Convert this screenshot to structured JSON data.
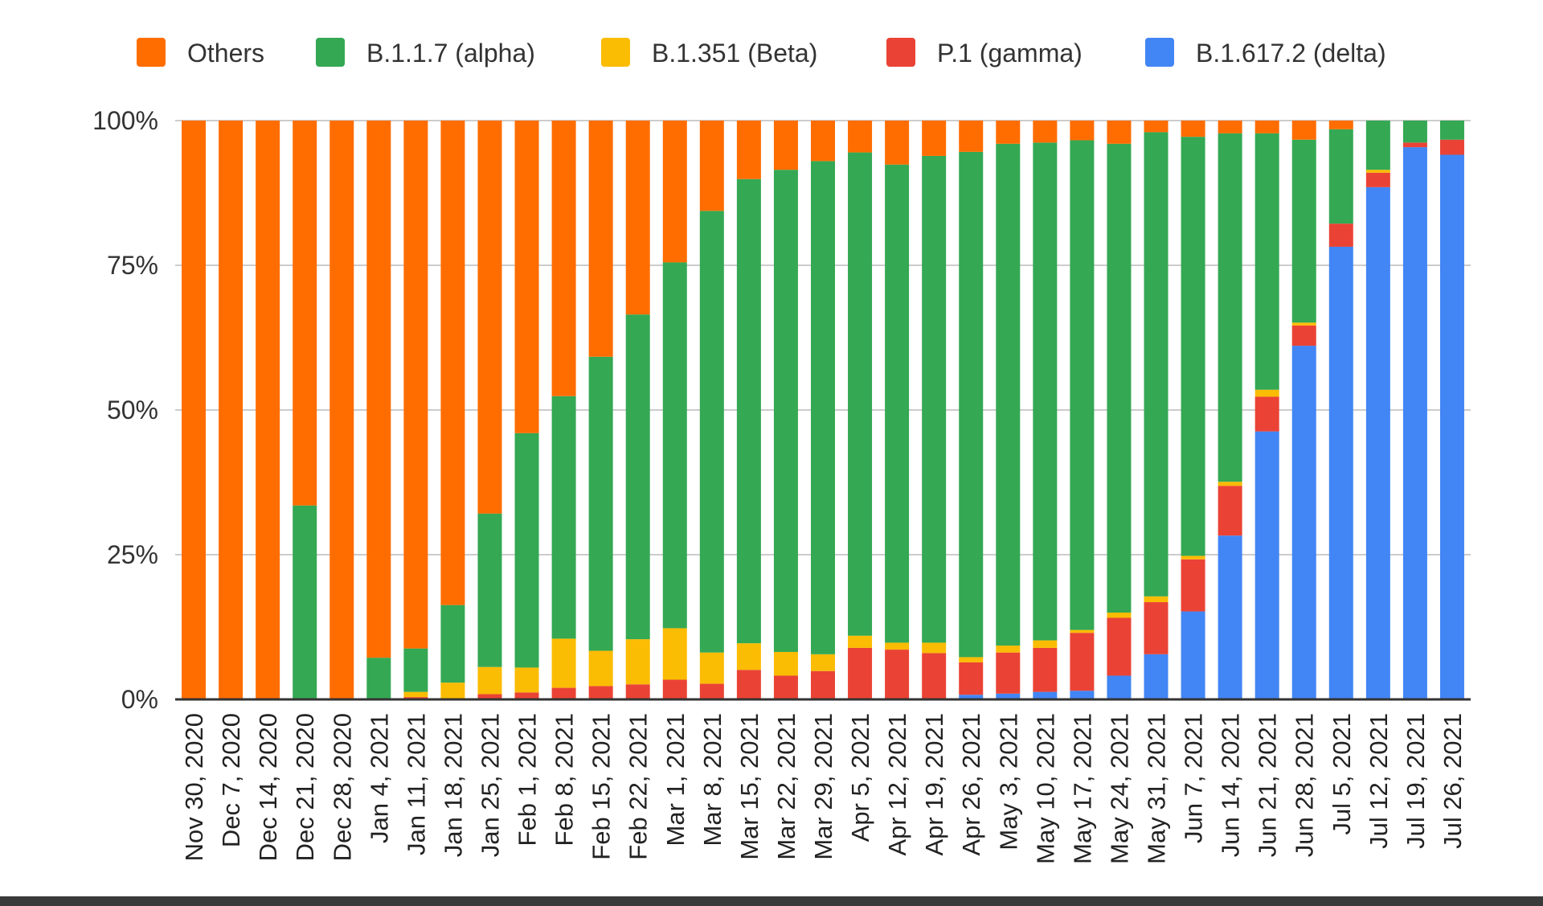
{
  "chart_data": {
    "type": "bar",
    "stacked": true,
    "normalized": true,
    "title": "",
    "xlabel": "",
    "ylabel": "",
    "ylim": [
      0,
      100
    ],
    "yticks": [
      "0%",
      "25%",
      "50%",
      "75%",
      "100%"
    ],
    "grid": true,
    "legend_position": "top",
    "categories": [
      "Nov 30, 2020",
      "Dec 7, 2020",
      "Dec 14, 2020",
      "Dec 21, 2020",
      "Dec 28, 2020",
      "Jan 4, 2021",
      "Jan 11, 2021",
      "Jan 18, 2021",
      "Jan 25, 2021",
      "Feb 1, 2021",
      "Feb 8, 2021",
      "Feb 15, 2021",
      "Feb 22, 2021",
      "Mar 1, 2021",
      "Mar 8, 2021",
      "Mar 15, 2021",
      "Mar 22, 2021",
      "Mar 29, 2021",
      "Apr 5, 2021",
      "Apr 12, 2021",
      "Apr 19, 2021",
      "Apr 26, 2021",
      "May 3, 2021",
      "May 10, 2021",
      "May 17, 2021",
      "May 24, 2021",
      "May 31, 2021",
      "Jun 7, 2021",
      "Jun 14, 2021",
      "Jun 21, 2021",
      "Jun 28, 2021",
      "Jul 5, 2021",
      "Jul 12, 2021",
      "Jul 19, 2021",
      "Jul 26, 2021"
    ],
    "stack_order": [
      "B.1.617.2 (delta)",
      "P.1 (gamma)",
      "B.1.351 (Beta)",
      "B.1.1.7 (alpha)",
      "Others"
    ],
    "series": [
      {
        "name": "Others",
        "color": "#FF6D01",
        "values": [
          100,
          100,
          100,
          66.5,
          100,
          92.8,
          91.2,
          83.7,
          67.9,
          54,
          47.6,
          40.8,
          33.5,
          24.5,
          15.6,
          10.1,
          8.5,
          7,
          5.5,
          7.6,
          6.1,
          5.4,
          4,
          3.8,
          3.4,
          4,
          2,
          2.8,
          2.2,
          2.2,
          3.3,
          1.5,
          0,
          0,
          0
        ]
      },
      {
        "name": "B.1.1.7 (alpha)",
        "color": "#34A853",
        "values": [
          0,
          0,
          0,
          33.5,
          0,
          7.2,
          7.5,
          13.4,
          26.5,
          40.5,
          41.9,
          50.8,
          56.1,
          63.2,
          76.3,
          80.2,
          83.3,
          85.2,
          83.5,
          82.6,
          84.1,
          87.3,
          86.7,
          86,
          84.6,
          81,
          80.2,
          72.4,
          60.2,
          44.3,
          31.6,
          16.3,
          8.5,
          3.8,
          3.3
        ]
      },
      {
        "name": "B.1.351 (Beta)",
        "color": "#FBBC04",
        "values": [
          0,
          0,
          0,
          0,
          0,
          0,
          0.9,
          2.9,
          4.7,
          4.3,
          8.5,
          6.1,
          7.8,
          8.9,
          5.4,
          4.6,
          4.1,
          2.9,
          2.1,
          1.2,
          1.8,
          0.9,
          1.2,
          1.3,
          0.5,
          0.9,
          1,
          0.6,
          0.7,
          1.2,
          0.5,
          0,
          0.5,
          0,
          0
        ]
      },
      {
        "name": "P.1 (gamma)",
        "color": "#EA4335",
        "values": [
          0,
          0,
          0,
          0,
          0,
          0,
          0.4,
          0,
          0.7,
          1.2,
          2,
          2.3,
          2.6,
          3.4,
          2.7,
          5.1,
          4.1,
          4.9,
          8.9,
          8.6,
          8,
          5.6,
          7.1,
          7.6,
          10,
          10,
          9,
          9,
          8.6,
          6,
          3.5,
          4,
          2.5,
          0.8,
          2.6
        ]
      },
      {
        "name": "B.1.617.2 (delta)",
        "color": "#4285F4",
        "values": [
          0,
          0,
          0,
          0,
          0,
          0,
          0,
          0,
          0.2,
          0,
          0,
          0,
          0,
          0,
          0,
          0,
          0,
          0,
          0,
          0,
          0,
          0.8,
          1,
          1.3,
          1.5,
          4.1,
          7.8,
          15.2,
          28.3,
          46.3,
          61.1,
          78.2,
          88.5,
          95.4,
          94.1
        ]
      }
    ]
  }
}
